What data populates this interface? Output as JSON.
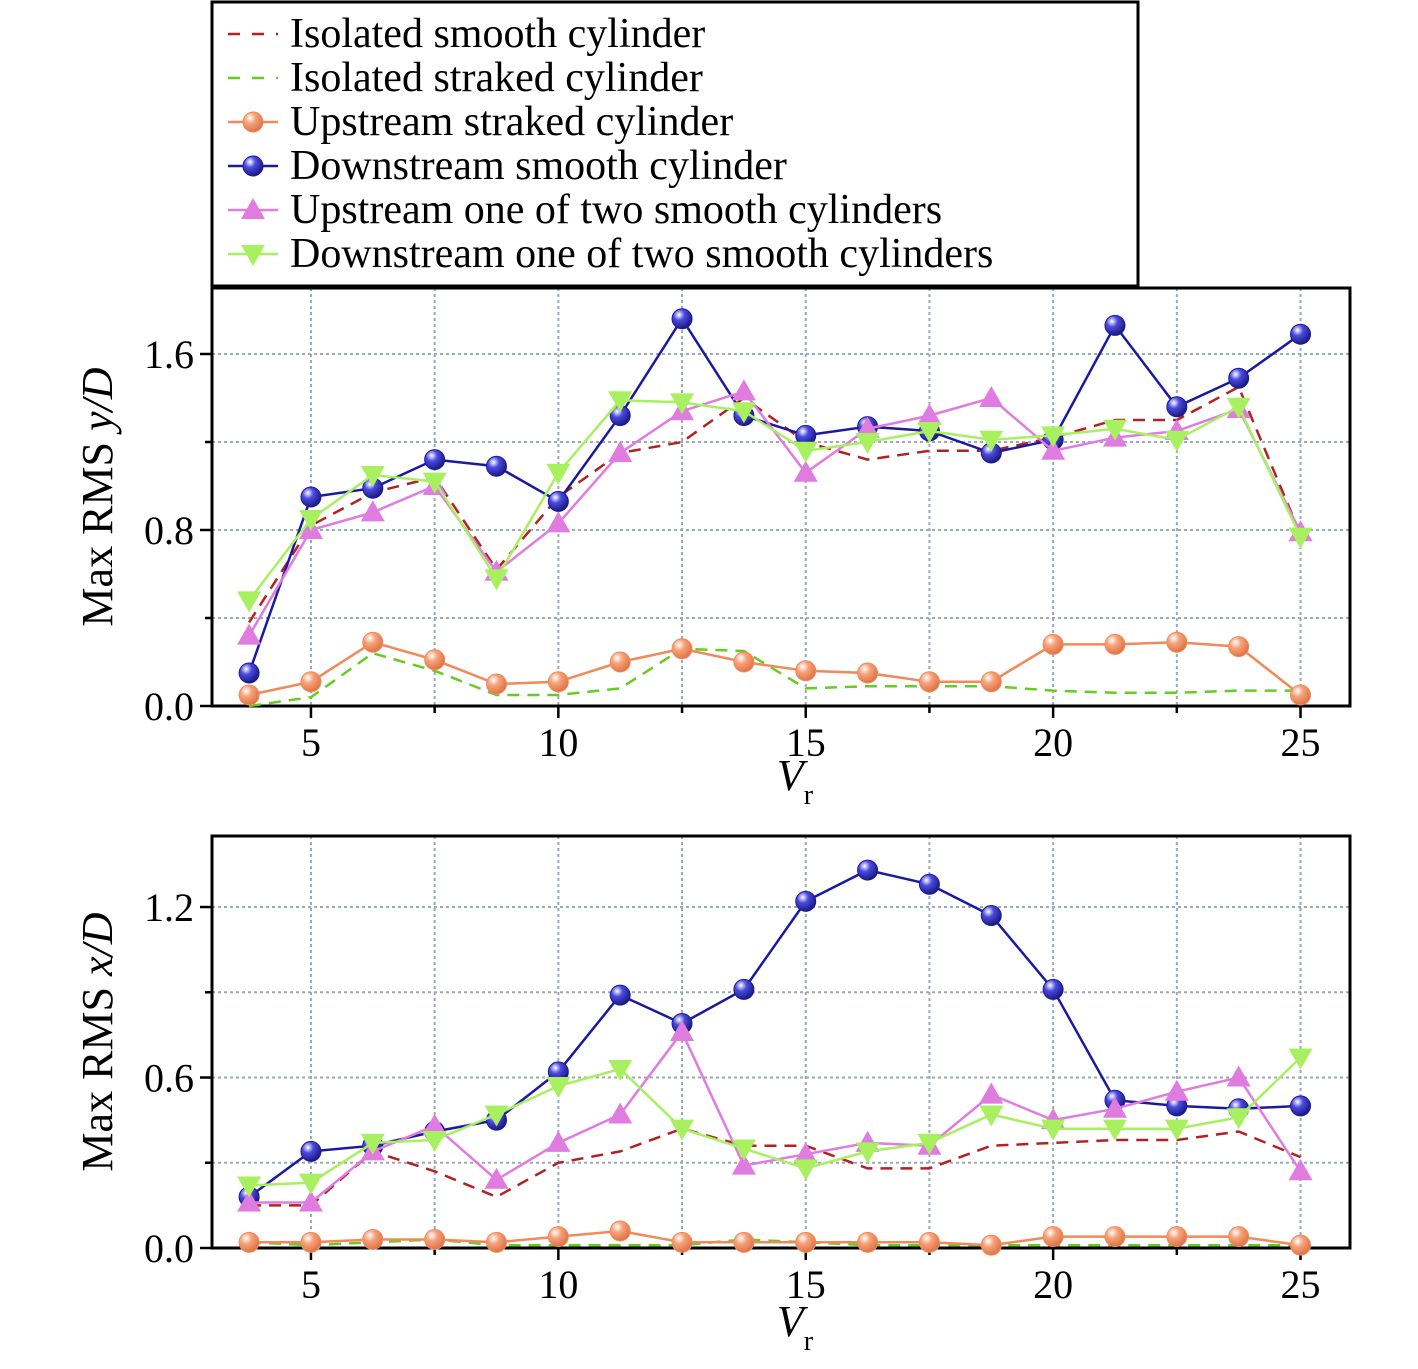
{
  "legend": {
    "entries": [
      {
        "label": "Isolated smooth cylinder",
        "series": "iso_smooth"
      },
      {
        "label": "Isolated straked cylinder",
        "series": "iso_straked"
      },
      {
        "label": "Upstream straked cylinder",
        "series": "up_straked"
      },
      {
        "label": "Downstream smooth cylinder",
        "series": "down_smooth"
      },
      {
        "label": "Upstream one of two smooth cylinders",
        "series": "up_two"
      },
      {
        "label": "Downstream one of two smooth cylinders",
        "series": "down_two"
      }
    ]
  },
  "styles": {
    "iso_smooth": {
      "color": "#b22222",
      "line": "dashed",
      "marker": "none"
    },
    "iso_straked": {
      "color": "#66cc22",
      "line": "dashed",
      "marker": "none"
    },
    "up_straked": {
      "color": "#f08a5a",
      "line": "solid",
      "marker": "circle"
    },
    "down_smooth": {
      "color": "#1a1aa0",
      "line": "solid",
      "marker": "circle"
    },
    "up_two": {
      "color": "#e07be0",
      "line": "solid",
      "marker": "triangle-up"
    },
    "down_two": {
      "color": "#a8f060",
      "line": "solid",
      "marker": "triangle-down"
    }
  },
  "chart_data": [
    {
      "type": "line",
      "xlabel_main": "V",
      "xlabel_sub": "r",
      "ylabel_prefix": "Max RMS ",
      "ylabel_var": "y/D",
      "xlim": [
        3,
        26
      ],
      "ylim": [
        0,
        1.9
      ],
      "xticks": [
        5,
        10,
        15,
        20,
        25
      ],
      "xtick_labels": [
        "5",
        "10",
        "15",
        "20",
        "25"
      ],
      "xgrid": [
        5,
        7.5,
        10,
        12.5,
        15,
        17.5,
        20,
        22.5,
        25
      ],
      "yticks": [
        0,
        0.8,
        1.6
      ],
      "ytick_labels": [
        "0.0",
        "0.8",
        "1.6"
      ],
      "ygrid": [
        0.4,
        0.8,
        1.2,
        1.6
      ],
      "grid": true,
      "x": [
        3.75,
        5.0,
        6.25,
        7.5,
        8.75,
        10.0,
        11.25,
        12.5,
        13.75,
        15.0,
        16.25,
        17.5,
        18.75,
        20.0,
        21.25,
        22.5,
        23.75,
        25.0
      ],
      "series": [
        {
          "name": "Isolated smooth cylinder",
          "key": "iso_smooth",
          "values": [
            0.38,
            0.82,
            0.97,
            1.04,
            0.62,
            0.95,
            1.15,
            1.2,
            1.4,
            1.2,
            1.12,
            1.16,
            1.16,
            1.22,
            1.3,
            1.3,
            1.45,
            0.78
          ]
        },
        {
          "name": "Isolated straked cylinder",
          "key": "iso_straked",
          "values": [
            0.0,
            0.04,
            0.24,
            0.16,
            0.05,
            0.05,
            0.08,
            0.26,
            0.25,
            0.08,
            0.09,
            0.09,
            0.09,
            0.07,
            0.06,
            0.06,
            0.07,
            0.07
          ]
        },
        {
          "name": "Upstream straked cylinder",
          "key": "up_straked",
          "values": [
            0.05,
            0.11,
            0.29,
            0.21,
            0.1,
            0.11,
            0.2,
            0.26,
            0.2,
            0.16,
            0.15,
            0.11,
            0.11,
            0.28,
            0.28,
            0.29,
            0.27,
            0.05
          ]
        },
        {
          "name": "Downstream smooth cylinder",
          "key": "down_smooth",
          "values": [
            0.15,
            0.95,
            0.99,
            1.12,
            1.09,
            0.93,
            1.32,
            1.76,
            1.32,
            1.23,
            1.27,
            1.25,
            1.15,
            1.21,
            1.73,
            1.36,
            1.49,
            1.69
          ]
        },
        {
          "name": "Upstream one of two smooth cylinders",
          "key": "up_two",
          "values": [
            0.32,
            0.8,
            0.88,
            1.0,
            0.61,
            0.83,
            1.15,
            1.34,
            1.43,
            1.06,
            1.26,
            1.32,
            1.4,
            1.16,
            1.22,
            1.25,
            1.35,
            0.79
          ]
        },
        {
          "name": "Downstream one of two smooth cylinders",
          "key": "down_two",
          "values": [
            0.48,
            0.85,
            1.05,
            1.02,
            0.58,
            1.06,
            1.39,
            1.38,
            1.34,
            1.16,
            1.2,
            1.25,
            1.21,
            1.23,
            1.26,
            1.21,
            1.36,
            0.77
          ]
        }
      ]
    },
    {
      "type": "line",
      "xlabel_main": "V",
      "xlabel_sub": "r",
      "ylabel_prefix": "Max RMS ",
      "ylabel_var": "x/D",
      "xlim": [
        3,
        26
      ],
      "ylim": [
        0,
        1.45
      ],
      "xticks": [
        5,
        10,
        15,
        20,
        25
      ],
      "xtick_labels": [
        "5",
        "10",
        "15",
        "20",
        "25"
      ],
      "xgrid": [
        5,
        7.5,
        10,
        12.5,
        15,
        17.5,
        20,
        22.5,
        25
      ],
      "yticks": [
        0,
        0.6,
        1.2
      ],
      "ytick_labels": [
        "0.0",
        "0.6",
        "1.2"
      ],
      "ygrid": [
        0.3,
        0.6,
        0.9,
        1.2
      ],
      "grid": true,
      "x": [
        3.75,
        5.0,
        6.25,
        7.5,
        8.75,
        10.0,
        11.25,
        12.5,
        13.75,
        15.0,
        16.25,
        17.5,
        18.75,
        20.0,
        21.25,
        22.5,
        23.75,
        25.0
      ],
      "series": [
        {
          "name": "Isolated smooth cylinder",
          "key": "iso_smooth",
          "values": [
            0.15,
            0.15,
            0.34,
            0.27,
            0.18,
            0.3,
            0.34,
            0.42,
            0.36,
            0.36,
            0.28,
            0.28,
            0.36,
            0.37,
            0.38,
            0.38,
            0.41,
            0.32
          ]
        },
        {
          "name": "Isolated straked cylinder",
          "key": "iso_straked",
          "values": [
            0.02,
            0.01,
            0.02,
            0.03,
            0.01,
            0.01,
            0.01,
            0.01,
            0.03,
            0.02,
            0.01,
            0.01,
            0.01,
            0.01,
            0.01,
            0.01,
            0.01,
            0.01
          ]
        },
        {
          "name": "Upstream straked cylinder",
          "key": "up_straked",
          "values": [
            0.02,
            0.02,
            0.03,
            0.03,
            0.02,
            0.04,
            0.06,
            0.02,
            0.02,
            0.02,
            0.02,
            0.02,
            0.01,
            0.04,
            0.04,
            0.04,
            0.04,
            0.01
          ]
        },
        {
          "name": "Downstream smooth cylinder",
          "key": "down_smooth",
          "values": [
            0.18,
            0.34,
            0.36,
            0.41,
            0.45,
            0.62,
            0.89,
            0.79,
            0.91,
            1.22,
            1.33,
            1.28,
            1.17,
            0.91,
            0.52,
            0.5,
            0.49,
            0.5
          ]
        },
        {
          "name": "Upstream one of two smooth cylinders",
          "key": "up_two",
          "values": [
            0.16,
            0.16,
            0.34,
            0.43,
            0.24,
            0.37,
            0.47,
            0.76,
            0.29,
            0.33,
            0.37,
            0.36,
            0.54,
            0.45,
            0.49,
            0.55,
            0.6,
            0.27
          ]
        },
        {
          "name": "Downstream one of two smooth cylinders",
          "key": "down_two",
          "values": [
            0.22,
            0.23,
            0.37,
            0.38,
            0.47,
            0.57,
            0.63,
            0.42,
            0.35,
            0.28,
            0.34,
            0.37,
            0.47,
            0.42,
            0.42,
            0.42,
            0.46,
            0.67
          ]
        }
      ]
    }
  ]
}
